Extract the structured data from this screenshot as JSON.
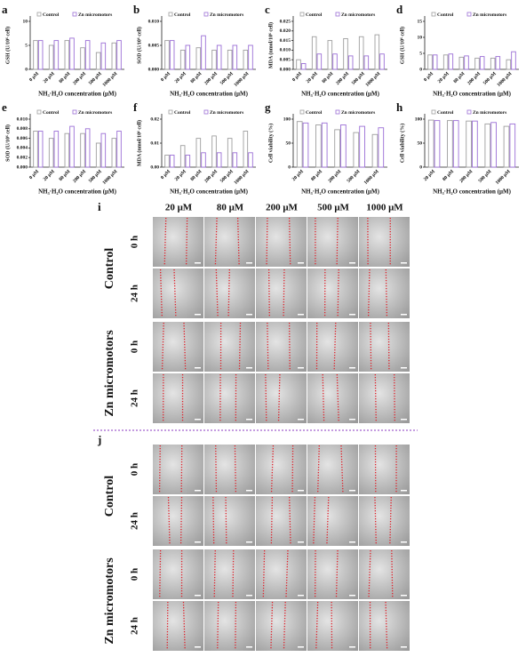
{
  "chart_data": [
    {
      "type": "bar",
      "panel": "a",
      "ylabel": "GSH (U/10⁶ cell)",
      "xlabel": "NH₃·H₂O concentration (μM)",
      "categories": [
        "0 μM",
        "20 μM",
        "80 μM",
        "200 μM",
        "500 μM",
        "1000 μM"
      ],
      "series": [
        {
          "name": "Control",
          "color": "#9e9e9e",
          "values": [
            6,
            5,
            6,
            4.5,
            3.5,
            5.5
          ]
        },
        {
          "name": "Zn micromotors",
          "color": "#9b6fd6",
          "values": [
            6,
            6,
            6.5,
            6,
            5.5,
            6
          ]
        }
      ],
      "ylim": [
        0,
        10
      ],
      "yticks": [
        0,
        5,
        10
      ]
    },
    {
      "type": "bar",
      "panel": "b",
      "ylabel": "SOD (U/10⁶ cell)",
      "xlabel": "NH₃·H₂O concentration (μM)",
      "categories": [
        "0 μM",
        "20 μM",
        "80 μM",
        "200 μM",
        "500 μM",
        "1000 μM"
      ],
      "series": [
        {
          "name": "Control",
          "color": "#9e9e9e",
          "values": [
            0.006,
            0.004,
            0.0045,
            0.004,
            0.004,
            0.004
          ]
        },
        {
          "name": "Zn micromotors",
          "color": "#9b6fd6",
          "values": [
            0.006,
            0.005,
            0.007,
            0.005,
            0.005,
            0.005
          ]
        }
      ],
      "ylim": [
        0,
        0.01
      ],
      "yticks": [
        {
          "value": 0,
          "label": "0.000"
        },
        0.005,
        {
          "value": 0.01,
          "label": "0.010"
        }
      ]
    },
    {
      "type": "bar",
      "panel": "c",
      "ylabel": "MDA (nmol/10⁶ cell)",
      "xlabel": "NH₃·H₂O concentration (μM)",
      "categories": [
        "0 μM",
        "20 μM",
        "80 μM",
        "200 μM",
        "500 μM",
        "1000 μM"
      ],
      "series": [
        {
          "name": "Control",
          "color": "#9e9e9e",
          "values": [
            0.005,
            0.017,
            0.015,
            0.016,
            0.017,
            0.018
          ]
        },
        {
          "name": "Zn micromotors",
          "color": "#9b6fd6",
          "values": [
            0.003,
            0.008,
            0.008,
            0.007,
            0.007,
            0.008
          ]
        }
      ],
      "ylim": [
        0,
        0.025
      ],
      "yticks": [
        {
          "value": 0,
          "label": "0.000"
        },
        0.005,
        {
          "value": 0.01,
          "label": "0.010"
        },
        0.015,
        {
          "value": 0.02,
          "label": "0.020"
        },
        0.025
      ]
    },
    {
      "type": "bar",
      "panel": "d",
      "ylabel": "GSH (U/10⁶ cell)",
      "xlabel": "NH₃·H₂O concentration (μM)",
      "categories": [
        "0 μM",
        "20 μM",
        "80 μM",
        "200 μM",
        "500 μM",
        "1000 μM"
      ],
      "series": [
        {
          "name": "Control",
          "color": "#9e9e9e",
          "values": [
            4.5,
            4.5,
            3.8,
            3.5,
            3.5,
            3
          ]
        },
        {
          "name": "Zn micromotors",
          "color": "#9b6fd6",
          "values": [
            4.5,
            4.8,
            4.2,
            4,
            4,
            5.5
          ]
        }
      ],
      "ylim": [
        0,
        15
      ],
      "yticks": [
        0,
        5,
        10,
        15
      ]
    },
    {
      "type": "bar",
      "panel": "e",
      "ylabel": "SOD (U/10⁶ cell)",
      "xlabel": "NH₃·H₂O concentration (μM)",
      "categories": [
        "0 μM",
        "20 μM",
        "80 μM",
        "200 μM",
        "500 μM",
        "1000 μM"
      ],
      "series": [
        {
          "name": "Control",
          "color": "#9e9e9e",
          "values": [
            0.0075,
            0.006,
            0.007,
            0.007,
            0.005,
            0.006
          ]
        },
        {
          "name": "Zn micromotors",
          "color": "#9b6fd6",
          "values": [
            0.0075,
            0.0075,
            0.0085,
            0.008,
            0.007,
            0.0075
          ]
        }
      ],
      "ylim": [
        0,
        0.01
      ],
      "yticks": [
        {
          "value": 0,
          "label": "0.000"
        },
        0.002,
        0.004,
        0.006,
        0.008,
        {
          "value": 0.01,
          "label": "0.010"
        }
      ]
    },
    {
      "type": "bar",
      "panel": "f",
      "ylabel": "MDA (nmol/10⁶ cell)",
      "xlabel": "NH₃·H₂O concentration (μM)",
      "categories": [
        "0 μM",
        "20 μM",
        "80 μM",
        "200 μM",
        "500 μM",
        "1000 μM"
      ],
      "series": [
        {
          "name": "Control",
          "color": "#9e9e9e",
          "values": [
            0.005,
            0.009,
            0.012,
            0.013,
            0.012,
            0.015
          ]
        },
        {
          "name": "Zn micromotors",
          "color": "#9b6fd6",
          "values": [
            0.005,
            0.005,
            0.006,
            0.006,
            0.006,
            0.006
          ]
        }
      ],
      "ylim": [
        0,
        0.02
      ],
      "yticks": [
        {
          "value": 0,
          "label": "0.00"
        },
        0.01,
        {
          "value": 0.02,
          "label": "0.02"
        }
      ]
    },
    {
      "type": "bar",
      "panel": "g",
      "ylabel": "Cell viability (%)",
      "xlabel": "NH₃·H₂O concentration (μM)",
      "categories": [
        "20 μM",
        "80 μM",
        "200 μM",
        "500 μM",
        "1000 μM"
      ],
      "series": [
        {
          "name": "Control",
          "color": "#9e9e9e",
          "values": [
            95,
            88,
            78,
            72,
            68
          ]
        },
        {
          "name": "Zn micromotors",
          "color": "#9b6fd6",
          "values": [
            92,
            92,
            88,
            85,
            82
          ]
        }
      ],
      "ylim": [
        0,
        100
      ],
      "yticks": [
        0,
        50,
        100
      ]
    },
    {
      "type": "bar",
      "panel": "h",
      "ylabel": "Cell viability (%)",
      "xlabel": "NH₃·H₂O concentration (μM)",
      "categories": [
        "20 μM",
        "80 μM",
        "200 μM",
        "500 μM",
        "1000 μM"
      ],
      "series": [
        {
          "name": "Control",
          "color": "#9e9e9e",
          "values": [
            98,
            97,
            96,
            90,
            85
          ]
        },
        {
          "name": "Zn micromotors",
          "color": "#9b6fd6",
          "values": [
            97,
            97,
            96,
            93,
            90
          ]
        }
      ],
      "ylim": [
        0,
        100
      ],
      "yticks": [
        0,
        50,
        100
      ]
    }
  ],
  "figure_i": {
    "panel": "i",
    "columns": [
      "20 μM",
      "80 μM",
      "200 μM",
      "500 μM",
      "1000 μM"
    ],
    "groups": [
      {
        "name": "Control",
        "times": [
          "0 h",
          "24 h"
        ]
      },
      {
        "name": "Zn micromotors",
        "times": [
          "0 h",
          "24 h"
        ]
      }
    ]
  },
  "figure_j": {
    "panel": "j",
    "groups": [
      {
        "name": "Control",
        "times": [
          "0 h",
          "24 h"
        ]
      },
      {
        "name": "Zn micromotors",
        "times": [
          "0 h",
          "24 h"
        ]
      }
    ]
  }
}
